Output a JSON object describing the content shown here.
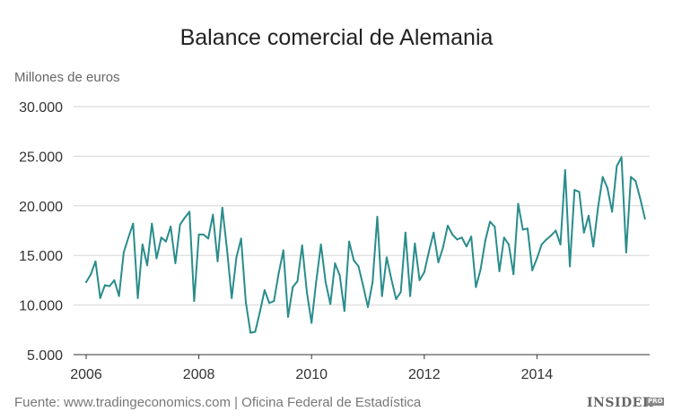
{
  "title": "Balance comercial de Alemania",
  "source": "Fuente: www.tradingeconomics.com | Oficina Federal de Estadística",
  "brand": {
    "name": "INSIDER",
    "sup": "PRO"
  },
  "chart_data": {
    "type": "line",
    "title": "Balance comercial de Alemania",
    "ylabel": "Millones de euros",
    "xlabel": "",
    "ylim": [
      5000,
      30000
    ],
    "xlim": [
      2006,
      2016
    ],
    "yticks": [
      5000,
      10000,
      15000,
      20000,
      25000,
      30000
    ],
    "ytick_labels": [
      "5.000",
      "10.000",
      "15.000",
      "20.000",
      "25.000",
      "30.000"
    ],
    "xticks": [
      2006,
      2008,
      2010,
      2012,
      2014
    ],
    "xtick_labels": [
      "2006",
      "2008",
      "2010",
      "2012",
      "2014"
    ],
    "grid": true,
    "color": "#2a8c8c",
    "series": [
      {
        "x": [
          "2006-01",
          "2006-02",
          "2006-03",
          "2006-04",
          "2006-05",
          "2006-06",
          "2006-07",
          "2006-08",
          "2006-09",
          "2006-10",
          "2006-11",
          "2006-12",
          "2007-01",
          "2007-02",
          "2007-03",
          "2007-04",
          "2007-05",
          "2007-06",
          "2007-07",
          "2007-08",
          "2007-09",
          "2007-10",
          "2007-11",
          "2007-12",
          "2008-01",
          "2008-02",
          "2008-03",
          "2008-04",
          "2008-05",
          "2008-06",
          "2008-07",
          "2008-08",
          "2008-09",
          "2008-10",
          "2008-11",
          "2008-12",
          "2009-01",
          "2009-02",
          "2009-03",
          "2009-04",
          "2009-05",
          "2009-06",
          "2009-07",
          "2009-08",
          "2009-09",
          "2009-10",
          "2009-11",
          "2009-12",
          "2010-01",
          "2010-02",
          "2010-03",
          "2010-04",
          "2010-05",
          "2010-06",
          "2010-07",
          "2010-08",
          "2010-09",
          "2010-10",
          "2010-11",
          "2010-12",
          "2011-01",
          "2011-02",
          "2011-03",
          "2011-04",
          "2011-05",
          "2011-06",
          "2011-07",
          "2011-08",
          "2011-09",
          "2011-10",
          "2011-11",
          "2011-12",
          "2012-01",
          "2012-02",
          "2012-03",
          "2012-04",
          "2012-05",
          "2012-06",
          "2012-07",
          "2012-08",
          "2012-09",
          "2012-10",
          "2012-11",
          "2012-12",
          "2013-01",
          "2013-02",
          "2013-03",
          "2013-04",
          "2013-05",
          "2013-06",
          "2013-07",
          "2013-08",
          "2013-09",
          "2013-10",
          "2013-11",
          "2013-12",
          "2014-01",
          "2014-02",
          "2014-03",
          "2014-04",
          "2014-05",
          "2014-06",
          "2014-07",
          "2014-08",
          "2014-09",
          "2014-10",
          "2014-11",
          "2014-12",
          "2015-01",
          "2015-02",
          "2015-03",
          "2015-04",
          "2015-05",
          "2015-06",
          "2015-07",
          "2015-08",
          "2015-09",
          "2015-10",
          "2015-11",
          "2015-12"
        ],
        "values": [
          12300,
          13100,
          14400,
          10700,
          12000,
          11900,
          12500,
          10900,
          15300,
          16800,
          18200,
          10700,
          16100,
          14000,
          18200,
          14700,
          16800,
          16400,
          17900,
          14200,
          18100,
          18800,
          19400,
          10400,
          17100,
          17100,
          16700,
          19100,
          14400,
          19800,
          15600,
          10700,
          14800,
          16700,
          10300,
          7200,
          7300,
          9300,
          11500,
          10200,
          10400,
          13200,
          15500,
          8800,
          11800,
          12400,
          16000,
          11300,
          8200,
          12400,
          16100,
          12300,
          10100,
          14200,
          13000,
          9400,
          16400,
          14500,
          13900,
          11900,
          9800,
          12300,
          18900,
          10900,
          14800,
          12600,
          10600,
          11300,
          17300,
          10900,
          16200,
          12500,
          13300,
          15400,
          17300,
          14300,
          15800,
          18000,
          17100,
          16600,
          16800,
          15900,
          16900,
          11800,
          13600,
          16500,
          18400,
          17900,
          13400,
          16800,
          16100,
          13100,
          20200,
          17600,
          17700,
          13500,
          14700,
          16100,
          16600,
          17000,
          17500,
          16100,
          23600,
          13900,
          21600,
          21400,
          17300,
          19000,
          15900,
          19800,
          22900,
          21800,
          19400,
          24000,
          24900,
          15300,
          22900,
          22500,
          20700,
          18700
        ]
      }
    ]
  }
}
